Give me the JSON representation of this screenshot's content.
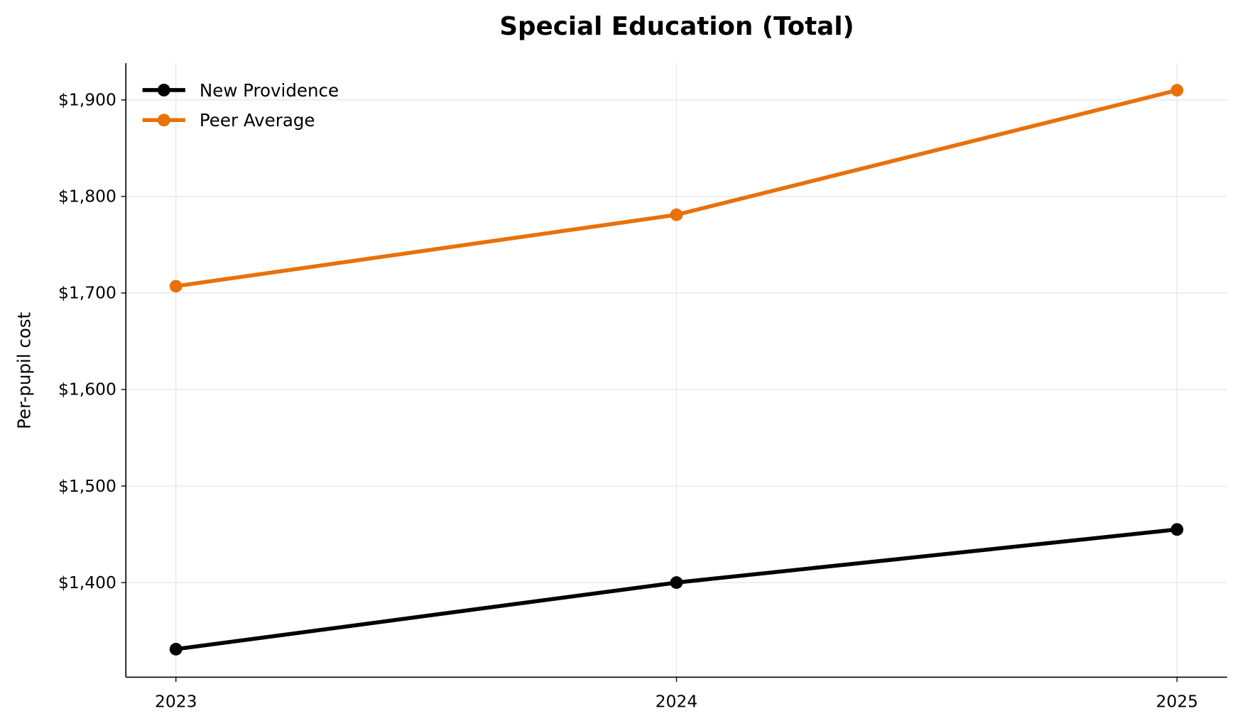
{
  "chart_data": {
    "type": "line",
    "title": "Special Education (Total)",
    "xlabel": "",
    "ylabel": "Per-pupil cost",
    "x": [
      2023,
      2024,
      2025
    ],
    "x_tick_labels": [
      "2023",
      "2024",
      "2025"
    ],
    "xlim": [
      2022.9,
      2025.1
    ],
    "ylim": [
      1302,
      1938
    ],
    "y_ticks": [
      1400,
      1500,
      1600,
      1700,
      1800,
      1900
    ],
    "y_tick_labels": [
      "$1,400",
      "$1,500",
      "$1,600",
      "$1,700",
      "$1,800",
      "$1,900"
    ],
    "grid": true,
    "legend_position": "top-left",
    "series": [
      {
        "name": "New Providence",
        "values": [
          1331,
          1400,
          1455
        ],
        "color": "#000000"
      },
      {
        "name": "Peer Average",
        "values": [
          1707,
          1781,
          1910
        ],
        "color": "#e8710a"
      }
    ]
  }
}
